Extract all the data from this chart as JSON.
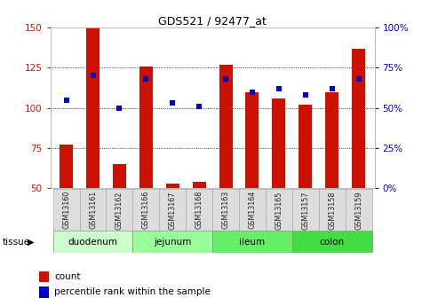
{
  "title": "GDS521 / 92477_at",
  "samples": [
    "GSM13160",
    "GSM13161",
    "GSM13162",
    "GSM13166",
    "GSM13167",
    "GSM13168",
    "GSM13163",
    "GSM13164",
    "GSM13165",
    "GSM13157",
    "GSM13158",
    "GSM13159"
  ],
  "counts": [
    77,
    150,
    65,
    126,
    53,
    54,
    127,
    110,
    106,
    102,
    110,
    137
  ],
  "percentiles": [
    55,
    70,
    50,
    68,
    53,
    51,
    68,
    60,
    62,
    58,
    62,
    68
  ],
  "tissues": [
    {
      "name": "duodenum",
      "start": 0,
      "end": 3,
      "color": "#ccffcc"
    },
    {
      "name": "jejunum",
      "start": 3,
      "end": 6,
      "color": "#99ff99"
    },
    {
      "name": "ileum",
      "start": 6,
      "end": 9,
      "color": "#66ee66"
    },
    {
      "name": "colon",
      "start": 9,
      "end": 12,
      "color": "#44dd44"
    }
  ],
  "ylim_left": [
    50,
    150
  ],
  "ylim_right": [
    0,
    100
  ],
  "yticks_left": [
    50,
    75,
    100,
    125,
    150
  ],
  "yticks_right": [
    0,
    25,
    50,
    75,
    100
  ],
  "bar_color": "#cc1100",
  "dot_color": "#0000cc",
  "grid_color": "#000000",
  "bg_color": "#ffffff",
  "tick_color_left": "#cc1100",
  "tick_color_right": "#0000cc",
  "bar_width": 0.5,
  "dot_size": 18,
  "label_count": "count",
  "label_percentile": "percentile rank within the sample"
}
